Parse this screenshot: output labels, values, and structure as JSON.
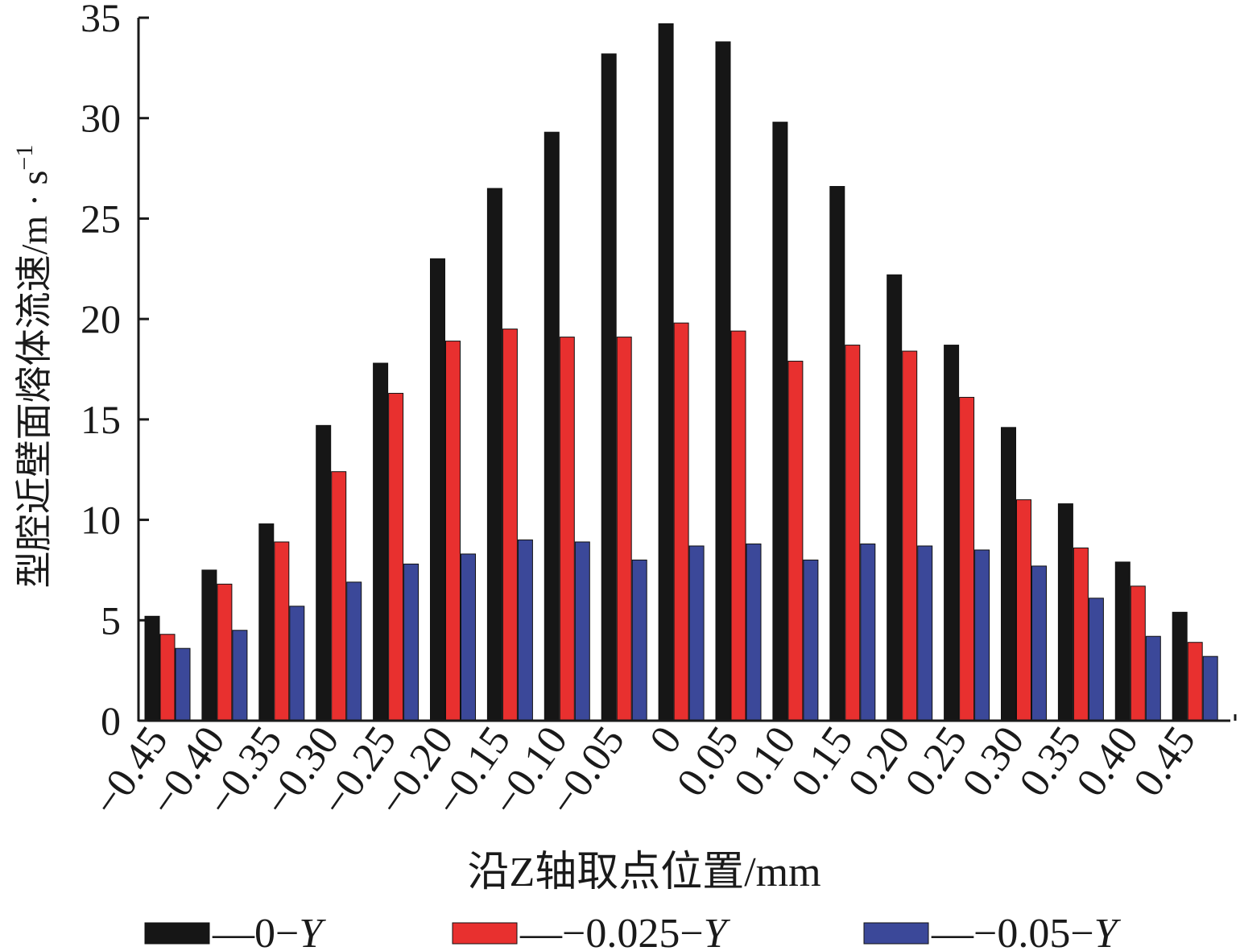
{
  "chart_data": {
    "type": "bar",
    "xlabel": "沿Z轴取点位置/mm",
    "ylabel": "型腔近壁面熔体流速/m · s",
    "ylabel_sup": "−1",
    "ylim": [
      0,
      35
    ],
    "yticks": [
      "0",
      "5",
      "10",
      "15",
      "20",
      "25",
      "30",
      "35"
    ],
    "ytick_values": [
      0,
      5,
      10,
      15,
      20,
      25,
      30,
      35
    ],
    "grid": false,
    "legend_position": "bottom",
    "categories": [
      "−0.45",
      "−0.40",
      "−0.35",
      "−0.30",
      "−0.25",
      "−0.20",
      "−0.15",
      "−0.10",
      "−0.05",
      "0",
      "0.05",
      "0.10",
      "0.15",
      "0.20",
      "0.25",
      "0.30",
      "0.35",
      "0.40",
      "0.45"
    ],
    "series": [
      {
        "name": "0",
        "legend_label": "—0−",
        "legend_italic": "Y",
        "color": "#161616",
        "values": [
          5.2,
          7.5,
          9.8,
          14.7,
          17.8,
          23.0,
          26.5,
          29.3,
          33.2,
          34.7,
          33.8,
          29.8,
          26.6,
          22.2,
          18.7,
          14.6,
          10.8,
          7.9,
          5.4
        ]
      },
      {
        "name": "-0.025",
        "legend_label": "—−0.025−",
        "legend_italic": "Y",
        "color": "#e8302f",
        "values": [
          4.3,
          6.8,
          8.9,
          12.4,
          16.3,
          18.9,
          19.5,
          19.1,
          19.1,
          19.8,
          19.4,
          17.9,
          18.7,
          18.4,
          16.1,
          11.0,
          8.6,
          6.7,
          3.9
        ]
      },
      {
        "name": "-0.05",
        "legend_label": "—−0.05−",
        "legend_italic": "Y",
        "color": "#3b4899",
        "values": [
          3.6,
          4.5,
          5.7,
          6.9,
          7.8,
          8.3,
          9.0,
          8.9,
          8.0,
          8.7,
          8.8,
          8.0,
          8.8,
          8.7,
          8.5,
          7.7,
          6.1,
          4.2,
          3.2
        ]
      }
    ]
  }
}
